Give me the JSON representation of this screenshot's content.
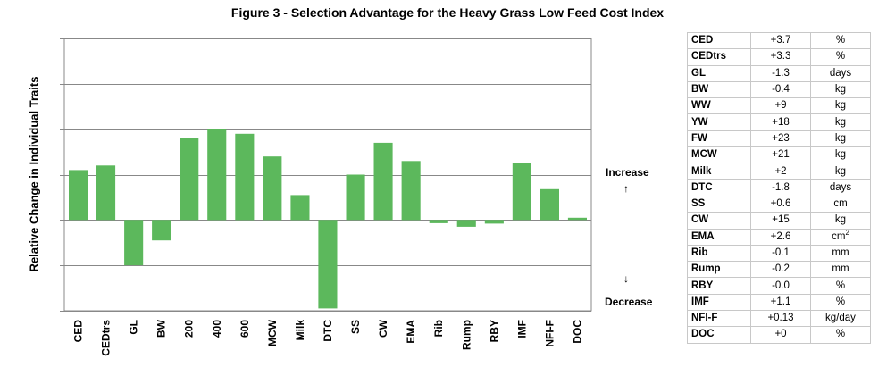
{
  "title": "Figure 3 - Selection Advantage for the Heavy Grass Low Feed Cost Index",
  "chart_data": {
    "type": "bar",
    "title": "Figure 3 - Selection Advantage for the Heavy Grass Low Feed Cost Index",
    "ylabel": "Relative Change in Individual Traits",
    "xlabel": "",
    "categories": [
      "CED",
      "CEDtrs",
      "GL",
      "BW",
      "200",
      "400",
      "600",
      "MCW",
      "Milk",
      "DTC",
      "SS",
      "CW",
      "EMA",
      "Rib",
      "Rump",
      "RBY",
      "IMF",
      "NFI-F",
      "DOC"
    ],
    "values": [
      1.1,
      1.2,
      -1.0,
      -0.45,
      1.8,
      2.0,
      1.9,
      1.4,
      0.55,
      -1.95,
      1.0,
      1.7,
      1.3,
      -0.07,
      -0.15,
      -0.08,
      1.25,
      0.68,
      0.05
    ],
    "ylim": [
      -2,
      4
    ],
    "grid": true,
    "bar_color": "#5cb85c",
    "annotations": {
      "up": "Increase",
      "down": "Decrease"
    }
  },
  "table": {
    "rows": [
      {
        "trait": "CED",
        "value": "+3.7",
        "unit": "%"
      },
      {
        "trait": "CEDtrs",
        "value": "+3.3",
        "unit": "%"
      },
      {
        "trait": "GL",
        "value": "-1.3",
        "unit": "days"
      },
      {
        "trait": "BW",
        "value": "-0.4",
        "unit": "kg"
      },
      {
        "trait": "WW",
        "value": "+9",
        "unit": "kg"
      },
      {
        "trait": "YW",
        "value": "+18",
        "unit": "kg"
      },
      {
        "trait": "FW",
        "value": "+23",
        "unit": "kg"
      },
      {
        "trait": "MCW",
        "value": "+21",
        "unit": "kg"
      },
      {
        "trait": "Milk",
        "value": "+2",
        "unit": "kg"
      },
      {
        "trait": "DTC",
        "value": "-1.8",
        "unit": "days"
      },
      {
        "trait": "SS",
        "value": "+0.6",
        "unit": "cm"
      },
      {
        "trait": "CW",
        "value": "+15",
        "unit": "kg"
      },
      {
        "trait": "EMA",
        "value": "+2.6",
        "unit": "cm",
        "unit_sup": "2"
      },
      {
        "trait": "Rib",
        "value": "-0.1",
        "unit": "mm"
      },
      {
        "trait": "Rump",
        "value": "-0.2",
        "unit": "mm"
      },
      {
        "trait": "RBY",
        "value": "-0.0",
        "unit": "%"
      },
      {
        "trait": "IMF",
        "value": "+1.1",
        "unit": "%"
      },
      {
        "trait": "NFI-F",
        "value": "+0.13",
        "unit": "kg/day"
      },
      {
        "trait": "DOC",
        "value": "+0",
        "unit": "%"
      }
    ]
  }
}
